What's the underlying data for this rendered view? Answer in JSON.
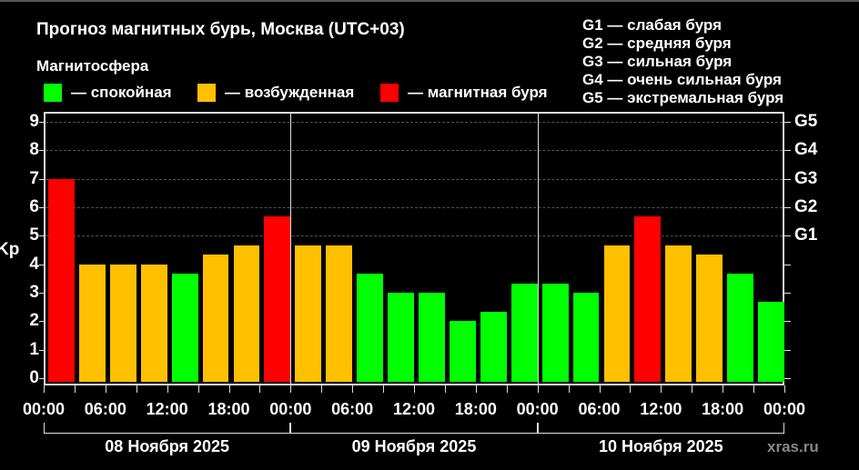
{
  "header": {
    "title": "Прогноз магнитных бурь, Москва (UTC+03)",
    "subtitle": "Магнитосфера",
    "legend": [
      {
        "label": "— спокойная",
        "color": "#00ff00"
      },
      {
        "label": "— возбужденная",
        "color": "#ffc000"
      },
      {
        "label": "— магнитная буря",
        "color": "#ff0000"
      }
    ],
    "g_scale": [
      "G1 — слабая буря",
      "G2 — средняя буря",
      "G3 — сильная буря",
      "G4 — очень сильная буря",
      "G5 — экстремальная буря"
    ]
  },
  "axes": {
    "ylabel": "Kp",
    "yticks": [
      "0",
      "1",
      "2",
      "3",
      "4",
      "5",
      "6",
      "7",
      "8",
      "9"
    ],
    "gticks": [
      {
        "label": "G1",
        "kp": 5
      },
      {
        "label": "G2",
        "kp": 6
      },
      {
        "label": "G3",
        "kp": 7
      },
      {
        "label": "G4",
        "kp": 8
      },
      {
        "label": "G5",
        "kp": 9
      }
    ],
    "xticks": [
      "00:00",
      "06:00",
      "12:00",
      "18:00",
      "00:00",
      "06:00",
      "12:00",
      "18:00",
      "00:00",
      "06:00",
      "12:00",
      "18:00",
      "00:00"
    ],
    "days": [
      "08 Ноября 2025",
      "09 Ноября 2025",
      "10 Ноября 2025"
    ]
  },
  "watermark": "xras.ru",
  "colors": {
    "quiet": "#00ff00",
    "unsettled": "#ffc000",
    "storm": "#ff0000"
  },
  "chart_data": {
    "type": "bar",
    "title": "Прогноз магнитных бурь, Москва (UTC+03)",
    "xlabel": "",
    "ylabel": "Kp",
    "ylim": [
      0,
      9
    ],
    "grid": true,
    "legend_position": "top",
    "categories": [
      "08.11 00:00",
      "08.11 03:00",
      "08.11 06:00",
      "08.11 09:00",
      "08.11 12:00",
      "08.11 15:00",
      "08.11 18:00",
      "08.11 21:00",
      "09.11 00:00",
      "09.11 03:00",
      "09.11 06:00",
      "09.11 09:00",
      "09.11 12:00",
      "09.11 15:00",
      "09.11 18:00",
      "09.11 21:00",
      "10.11 00:00",
      "10.11 03:00",
      "10.11 06:00",
      "10.11 09:00",
      "10.11 12:00",
      "10.11 15:00",
      "10.11 18:00",
      "10.11 21:00"
    ],
    "values": [
      7,
      4,
      4,
      4,
      3.67,
      4.33,
      4.67,
      5.67,
      4.67,
      4.67,
      3.67,
      3,
      3,
      2,
      2.33,
      3.33,
      3.33,
      3,
      4.67,
      5.67,
      4.67,
      4.33,
      3.67,
      2.67
    ],
    "levels": [
      "storm",
      "unsettled",
      "unsettled",
      "unsettled",
      "quiet",
      "unsettled",
      "unsettled",
      "storm",
      "unsettled",
      "unsettled",
      "quiet",
      "quiet",
      "quiet",
      "quiet",
      "quiet",
      "quiet",
      "quiet",
      "quiet",
      "unsettled",
      "storm",
      "unsettled",
      "unsettled",
      "quiet",
      "quiet"
    ],
    "legend": [
      "спокойная",
      "возбужденная",
      "магнитная буря"
    ],
    "secondary_axis": {
      "G1": 5,
      "G2": 6,
      "G3": 7,
      "G4": 8,
      "G5": 9
    }
  }
}
